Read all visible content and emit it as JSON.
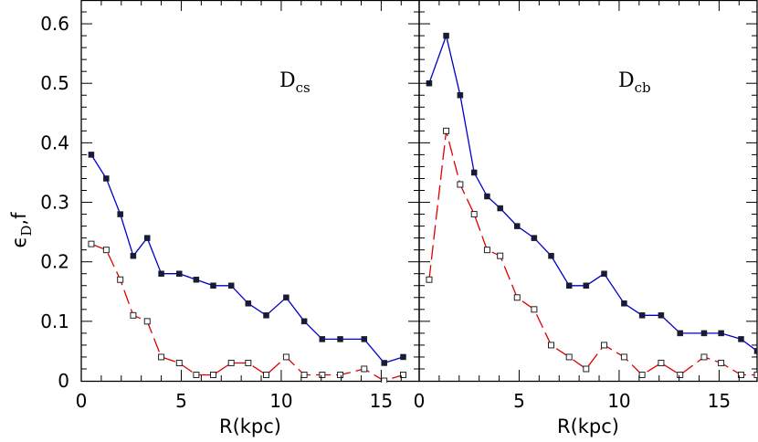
{
  "chart_data": {
    "type": "line",
    "ylabel": "ϵ",
    "ylabel_sub": "D",
    "ylabel_tail": ",f",
    "ylim": [
      0,
      0.64
    ],
    "yticks": [
      "0",
      "0.1",
      "0.2",
      "0.3",
      "0.4",
      "0.5",
      "0.6"
    ],
    "grid": false,
    "colors": {
      "blue": "#0000cc",
      "red": "#dd0000",
      "marker_fill": "#1a1a33",
      "open_marker": "#ffffff"
    },
    "panels": [
      {
        "label": "D",
        "label_sub": "cs",
        "xlabel": "R(kpc)",
        "xlim": [
          0,
          16.9
        ],
        "xticks": [
          "5",
          "10",
          "15"
        ],
        "series": [
          {
            "color": "blue",
            "line": "solid",
            "marker": "filled-square",
            "x": [
              0.5,
              1.25,
              1.95,
              2.6,
              3.3,
              4.0,
              4.9,
              5.75,
              6.6,
              7.5,
              8.35,
              9.25,
              10.25,
              11.15,
              12.05,
              12.95,
              14.15,
              15.15,
              16.1
            ],
            "y": [
              0.38,
              0.34,
              0.28,
              0.21,
              0.24,
              0.18,
              0.18,
              0.17,
              0.16,
              0.16,
              0.13,
              0.11,
              0.14,
              0.1,
              0.07,
              0.07,
              0.07,
              0.03,
              0.04
            ]
          },
          {
            "color": "red",
            "line": "dashed",
            "marker": "open-square",
            "x": [
              0.5,
              1.25,
              1.95,
              2.6,
              3.3,
              4.0,
              4.9,
              5.75,
              6.6,
              7.5,
              8.35,
              9.25,
              10.25,
              11.15,
              12.05,
              12.95,
              14.15,
              15.15,
              16.1
            ],
            "y": [
              0.23,
              0.22,
              0.17,
              0.11,
              0.1,
              0.04,
              0.03,
              0.01,
              0.01,
              0.03,
              0.03,
              0.01,
              0.04,
              0.01,
              0.01,
              0.01,
              0.02,
              0.0,
              0.01
            ]
          }
        ]
      },
      {
        "label": "D",
        "label_sub": "cb",
        "xlabel": "R(kpc)",
        "xlim": [
          0,
          16.9
        ],
        "xticks": [
          "5",
          "10",
          "15"
        ],
        "series": [
          {
            "color": "blue",
            "line": "solid",
            "marker": "filled-square",
            "x": [
              0.5,
              1.35,
              2.05,
              2.75,
              3.4,
              4.05,
              4.9,
              5.75,
              6.6,
              7.5,
              8.35,
              9.25,
              10.25,
              11.15,
              12.1,
              13.05,
              14.25,
              15.1,
              16.1,
              16.9
            ],
            "y": [
              0.5,
              0.58,
              0.48,
              0.35,
              0.31,
              0.29,
              0.26,
              0.24,
              0.21,
              0.16,
              0.16,
              0.18,
              0.13,
              0.11,
              0.11,
              0.08,
              0.08,
              0.08,
              0.07,
              0.05
            ]
          },
          {
            "color": "red",
            "line": "dashed",
            "marker": "open-square",
            "x": [
              0.5,
              1.35,
              2.05,
              2.75,
              3.4,
              4.05,
              4.9,
              5.75,
              6.6,
              7.5,
              8.35,
              9.25,
              10.25,
              11.15,
              12.1,
              13.05,
              14.25,
              15.1,
              16.1,
              16.9
            ],
            "y": [
              0.17,
              0.42,
              0.33,
              0.28,
              0.22,
              0.21,
              0.14,
              0.12,
              0.06,
              0.04,
              0.02,
              0.06,
              0.04,
              0.01,
              0.03,
              0.01,
              0.04,
              0.03,
              0.01,
              0.01
            ]
          }
        ]
      }
    ]
  }
}
